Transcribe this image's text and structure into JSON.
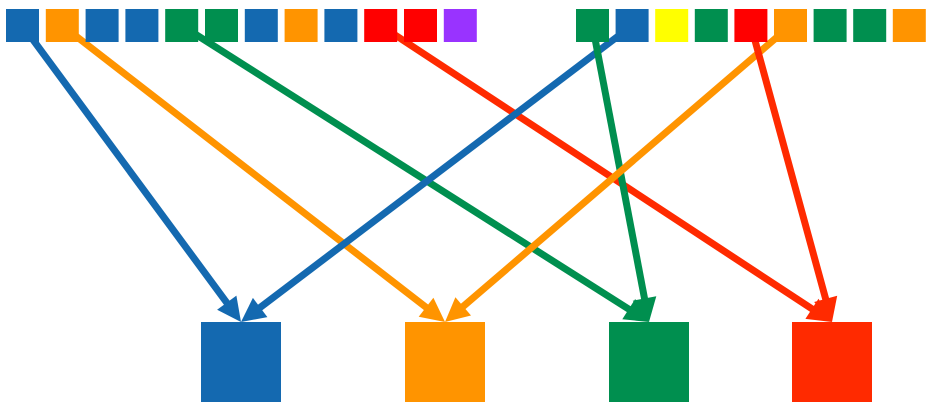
{
  "colors": {
    "blue": "#1469b0",
    "orange": "#ff9400",
    "green": "#008f4f",
    "red": "#ff0000",
    "purple": "#9933ff",
    "yellow": "#ffff00",
    "target_red": "#ff2a00",
    "arrow_red": "#ff2a00",
    "background": "#ffffff"
  },
  "left_group": [
    "blue",
    "orange",
    "blue",
    "blue",
    "green",
    "green",
    "blue",
    "orange",
    "blue",
    "red",
    "red",
    "purple"
  ],
  "right_group": [
    "green",
    "blue",
    "yellow",
    "green",
    "red",
    "orange",
    "green",
    "green",
    "orange"
  ],
  "targets": [
    "blue",
    "orange",
    "green",
    "red"
  ],
  "arrows": [
    {
      "from_group": "left",
      "from_index": 0,
      "to_index": 0,
      "color": "blue"
    },
    {
      "from_group": "left",
      "from_index": 1,
      "to_index": 1,
      "color": "orange"
    },
    {
      "from_group": "left",
      "from_index": 4,
      "to_index": 2,
      "color": "green"
    },
    {
      "from_group": "left",
      "from_index": 9,
      "to_index": 3,
      "color": "arrow_red"
    },
    {
      "from_group": "right",
      "from_index": 1,
      "to_index": 0,
      "color": "blue"
    },
    {
      "from_group": "right",
      "from_index": 0,
      "to_index": 2,
      "color": "green"
    },
    {
      "from_group": "right",
      "from_index": 5,
      "to_index": 1,
      "color": "orange"
    },
    {
      "from_group": "right",
      "from_index": 4,
      "to_index": 3,
      "color": "arrow_red"
    }
  ]
}
